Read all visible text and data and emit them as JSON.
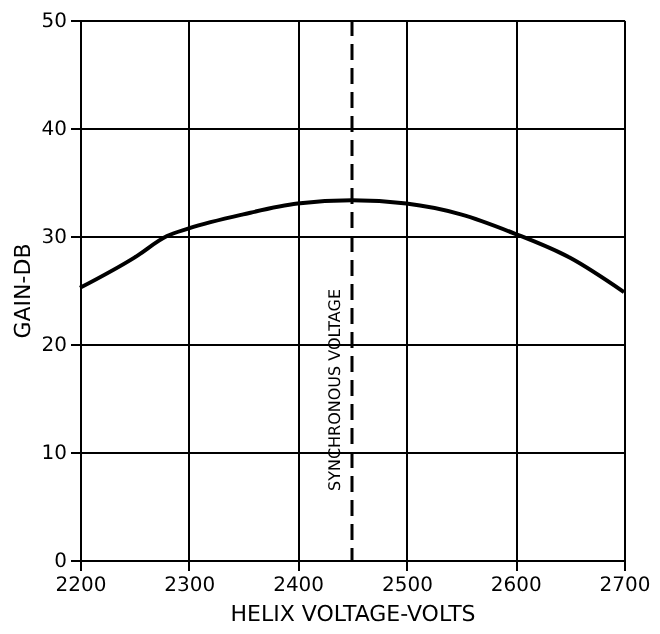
{
  "chart_data": {
    "type": "line",
    "xlabel": "HELIX VOLTAGE-VOLTS",
    "ylabel": "GAIN-DB",
    "x": [
      2200,
      2250,
      2280,
      2300,
      2350,
      2400,
      2450,
      2500,
      2550,
      2600,
      2650,
      2700
    ],
    "series": [
      {
        "color": "#000000",
        "values": [
          25.2,
          28.0,
          30.0,
          30.7,
          32.0,
          33.0,
          33.3,
          33.0,
          32.0,
          30.2,
          28.0,
          24.8
        ]
      }
    ],
    "xlim": [
      2200,
      2700
    ],
    "xticks": [
      2200,
      2300,
      2400,
      2500,
      2600,
      2700
    ],
    "ylim": [
      0,
      50
    ],
    "yticks": [
      0,
      10,
      20,
      30,
      40,
      50
    ],
    "grid": true,
    "marker": "none",
    "line_style": "solid",
    "ref_lines": [
      {
        "axis": "x",
        "value": 2450,
        "label": "SYNCHRONOUS VOLTAGE",
        "line_style": "dashed",
        "color": "#000000"
      }
    ]
  }
}
